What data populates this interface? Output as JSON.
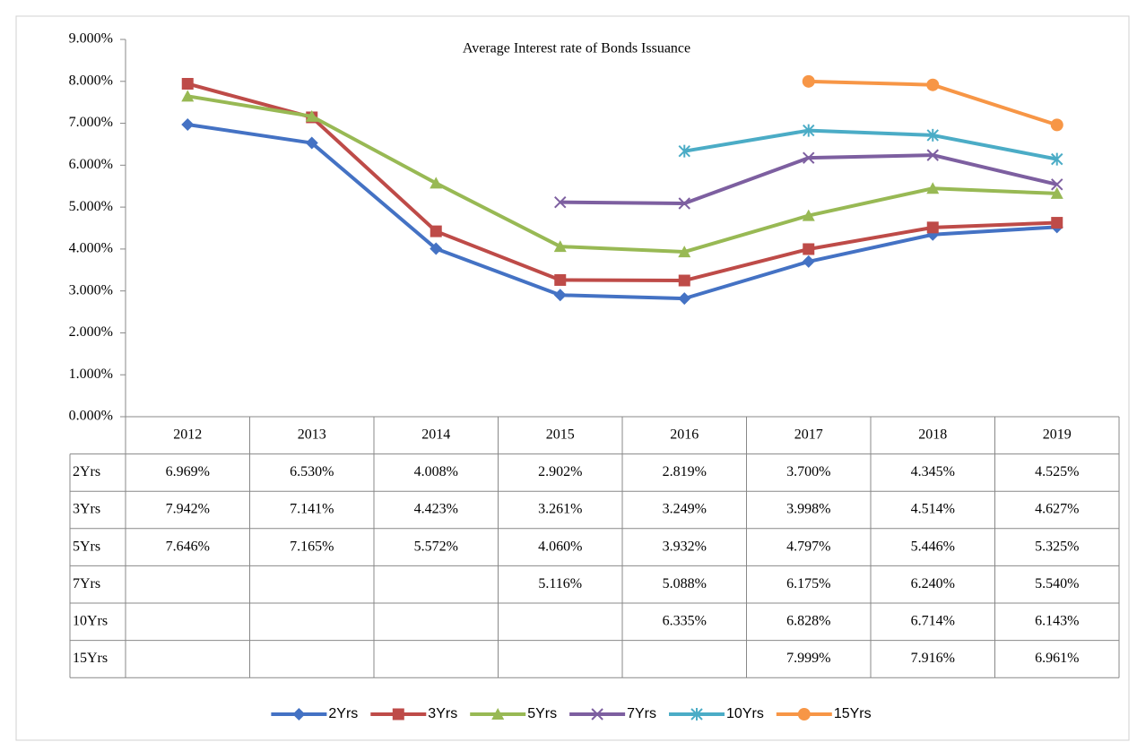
{
  "chart_data": {
    "type": "line",
    "title": "Average Interest rate of Bonds Issuance",
    "categories": [
      "2012",
      "2013",
      "2014",
      "2015",
      "2016",
      "2017",
      "2018",
      "2019"
    ],
    "ylim": [
      0,
      9
    ],
    "yticks": [
      {
        "value": 0,
        "label": "0.000%"
      },
      {
        "value": 1,
        "label": "1.000%"
      },
      {
        "value": 2,
        "label": "2.000%"
      },
      {
        "value": 3,
        "label": "3.000%"
      },
      {
        "value": 4,
        "label": "4.000%"
      },
      {
        "value": 5,
        "label": "5.000%"
      },
      {
        "value": 6,
        "label": "6.000%"
      },
      {
        "value": 7,
        "label": "7.000%"
      },
      {
        "value": 8,
        "label": "8.000%"
      },
      {
        "value": 9,
        "label": "9.000%"
      }
    ],
    "legend": "bottom",
    "data_table": true,
    "series": [
      {
        "name": "2Yrs",
        "color": "#4472c4",
        "marker": "diamond",
        "values": [
          6.969,
          6.53,
          4.008,
          2.902,
          2.819,
          3.7,
          4.345,
          4.525
        ],
        "value_labels": [
          "6.969%",
          "6.530%",
          "4.008%",
          "2.902%",
          "2.819%",
          "3.700%",
          "4.345%",
          "4.525%"
        ]
      },
      {
        "name": "3Yrs",
        "color": "#be4b48",
        "marker": "square",
        "values": [
          7.942,
          7.141,
          4.423,
          3.261,
          3.249,
          3.998,
          4.514,
          4.627
        ],
        "value_labels": [
          "7.942%",
          "7.141%",
          "4.423%",
          "3.261%",
          "3.249%",
          "3.998%",
          "4.514%",
          "4.627%"
        ]
      },
      {
        "name": "5Yrs",
        "color": "#98b954",
        "marker": "triangle",
        "values": [
          7.646,
          7.165,
          5.572,
          4.06,
          3.932,
          4.797,
          5.446,
          5.325
        ],
        "value_labels": [
          "7.646%",
          "7.165%",
          "5.572%",
          "4.060%",
          "3.932%",
          "4.797%",
          "5.446%",
          "5.325%"
        ]
      },
      {
        "name": "7Yrs",
        "color": "#7d5fa0",
        "marker": "x",
        "values": [
          null,
          null,
          null,
          5.116,
          5.088,
          6.175,
          6.24,
          5.54
        ],
        "value_labels": [
          null,
          null,
          null,
          "5.116%",
          "5.088%",
          "6.175%",
          "6.240%",
          "5.540%"
        ]
      },
      {
        "name": "10Yrs",
        "color": "#4bacc6",
        "marker": "star",
        "values": [
          null,
          null,
          null,
          null,
          6.335,
          6.828,
          6.714,
          6.143
        ],
        "value_labels": [
          null,
          null,
          null,
          null,
          "6.335%",
          "6.828%",
          "6.714%",
          "6.143%"
        ]
      },
      {
        "name": "15Yrs",
        "color": "#f79646",
        "marker": "circle",
        "values": [
          null,
          null,
          null,
          null,
          null,
          7.999,
          7.916,
          6.961
        ],
        "value_labels": [
          null,
          null,
          null,
          null,
          null,
          "7.999%",
          "7.916%",
          "6.961%"
        ]
      }
    ]
  }
}
